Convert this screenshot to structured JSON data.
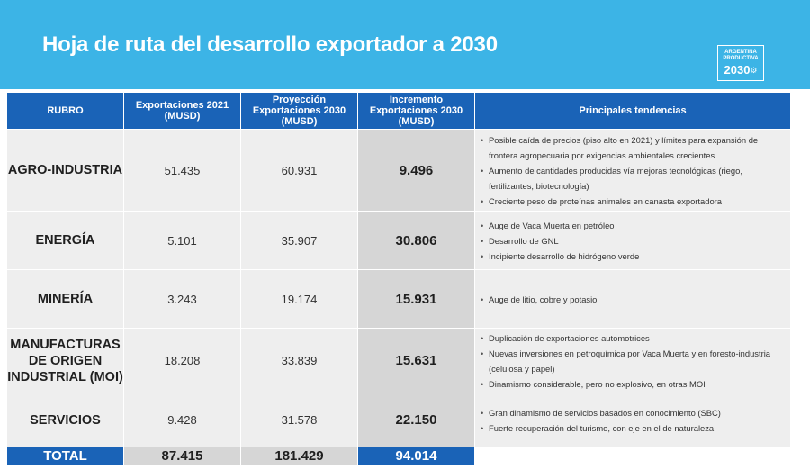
{
  "header": {
    "title": "Hoja de ruta del desarrollo exportador a 2030",
    "logo_line1": "ARGENTINA",
    "logo_line2": "PRODUCTIVA",
    "logo_line3": "2030"
  },
  "table": {
    "columns": [
      "RUBRO",
      "Exportaciones 2021 (MUSD)",
      "Proyección Exportaciones 2030 (MUSD)",
      "Incremento Exportaciones 2030 (MUSD)",
      "Principales tendencias"
    ],
    "rows": [
      {
        "rubro": "AGRO-INDUSTRIA",
        "exp2021": "51.435",
        "proy2030": "60.931",
        "incremento": "9.496",
        "tendencias": [
          "Posible caída de precios (piso alto en 2021) y límites para expansión de frontera agropecuaria por exigencias ambientales crecientes",
          "Aumento de cantidades producidas vía mejoras tecnológicas (riego, fertilizantes, biotecnología)",
          "Creciente peso de proteínas animales en canasta exportadora"
        ]
      },
      {
        "rubro": "ENERGÍA",
        "exp2021": "5.101",
        "proy2030": "35.907",
        "incremento": "30.806",
        "tendencias": [
          "Auge de Vaca Muerta en petróleo",
          "Desarrollo de GNL",
          "Incipiente desarrollo de hidrógeno verde"
        ]
      },
      {
        "rubro": "MINERÍA",
        "exp2021": "3.243",
        "proy2030": "19.174",
        "incremento": "15.931",
        "tendencias": [
          "Auge de litio, cobre y potasio"
        ]
      },
      {
        "rubro": "MANUFACTURAS DE ORIGEN INDUSTRIAL (MOI)",
        "exp2021": "18.208",
        "proy2030": "33.839",
        "incremento": "15.631",
        "tendencias": [
          "Duplicación de exportaciones automotrices",
          "Nuevas inversiones en petroquímica por Vaca Muerta y en foresto-industria (celulosa y papel)",
          "Dinamismo considerable, pero no explosivo, en otras MOI"
        ]
      },
      {
        "rubro": "SERVICIOS",
        "exp2021": "9.428",
        "proy2030": "31.578",
        "incremento": "22.150",
        "tendencias": [
          "Gran dinamismo de servicios basados en conocimiento (SBC)",
          "Fuerte recuperación del turismo, con eje en el de naturaleza"
        ]
      }
    ],
    "total": {
      "label": "TOTAL",
      "exp2021": "87.415",
      "proy2030": "181.429",
      "incremento": "94.014"
    }
  },
  "colors": {
    "banner": "#3cb4e6",
    "header_blue": "#1a63b7",
    "cell_bg": "#eeeeee",
    "highlight_bg": "#d6d6d6"
  }
}
